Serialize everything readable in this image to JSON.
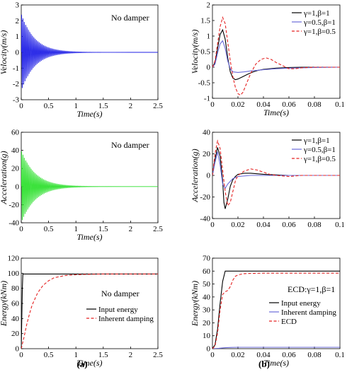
{
  "panel_labels": [
    "(a)",
    "(b)"
  ],
  "chart_data": [
    {
      "id": "a1",
      "type": "line",
      "xlabel": "Time(s)",
      "ylabel": "Velocity(m/s)",
      "xlim": [
        0,
        2.5
      ],
      "ylim": [
        -3,
        3
      ],
      "xticks": [
        0,
        0.5,
        1,
        1.5,
        2,
        2.5
      ],
      "yticks": [
        -3,
        -2,
        -1,
        0,
        1,
        2,
        3
      ],
      "annotation": "No damper",
      "series": [
        {
          "color": "#1f1fe6",
          "style": "solid",
          "kind": "damped_oscillation",
          "amplitude": 2.45,
          "decay_rate": 4.2,
          "frequency_hz": 40,
          "t_end": 2.5
        }
      ]
    },
    {
      "id": "b1",
      "type": "line",
      "xlabel": "Time(s)",
      "ylabel": "Velocity(m/s)",
      "xlim": [
        0,
        0.1
      ],
      "ylim": [
        -1,
        2
      ],
      "xticks": [
        0,
        0.02,
        0.04,
        0.06,
        0.08,
        0.1
      ],
      "yticks": [
        -1,
        -0.5,
        0,
        0.5,
        1,
        1.5,
        2
      ],
      "legend_position": "top-right",
      "series": [
        {
          "name": "γ=1,β=1",
          "color": "#000000",
          "style": "solid",
          "x": [
            0,
            0.002,
            0.004,
            0.006,
            0.008,
            0.01,
            0.012,
            0.014,
            0.016,
            0.018,
            0.02,
            0.024,
            0.028,
            0.032,
            0.036,
            0.04,
            0.05,
            0.06,
            0.07,
            0.08,
            0.1
          ],
          "y": [
            0,
            0.15,
            0.6,
            1.05,
            1.2,
            0.9,
            0.3,
            -0.15,
            -0.35,
            -0.4,
            -0.38,
            -0.3,
            -0.22,
            -0.15,
            -0.1,
            -0.07,
            -0.03,
            -0.01,
            0,
            0,
            0
          ]
        },
        {
          "name": "γ=0.5,β=1",
          "color": "#6b6bd9",
          "style": "solid",
          "x": [
            0,
            0.002,
            0.004,
            0.006,
            0.008,
            0.01,
            0.012,
            0.014,
            0.016,
            0.02,
            0.025,
            0.03,
            0.04,
            0.05,
            0.06,
            0.08,
            0.1
          ],
          "y": [
            0,
            0.1,
            0.45,
            0.75,
            0.85,
            0.6,
            0.2,
            -0.05,
            -0.15,
            -0.17,
            -0.15,
            -0.12,
            -0.08,
            -0.05,
            -0.03,
            -0.01,
            0
          ]
        },
        {
          "name": "γ=1,β=0.5",
          "color": "#e52222",
          "style": "dashed",
          "x": [
            0,
            0.002,
            0.004,
            0.006,
            0.008,
            0.01,
            0.012,
            0.014,
            0.016,
            0.018,
            0.02,
            0.022,
            0.024,
            0.026,
            0.03,
            0.034,
            0.038,
            0.042,
            0.046,
            0.05,
            0.055,
            0.06,
            0.065,
            0.07,
            0.08,
            0.09,
            0.1
          ],
          "y": [
            0,
            0.2,
            0.75,
            1.3,
            1.6,
            1.4,
            0.8,
            0.2,
            -0.3,
            -0.65,
            -0.85,
            -0.9,
            -0.8,
            -0.6,
            -0.2,
            0.1,
            0.25,
            0.3,
            0.25,
            0.15,
            0.05,
            -0.05,
            -0.05,
            -0.02,
            0,
            0,
            0
          ]
        }
      ]
    },
    {
      "id": "a2",
      "type": "line",
      "xlabel": "Time(s)",
      "ylabel": "Acceleration(g)",
      "xlim": [
        0,
        2.5
      ],
      "ylim": [
        -40,
        60
      ],
      "xticks": [
        0,
        0.5,
        1,
        1.5,
        2,
        2.5
      ],
      "yticks": [
        -40,
        -20,
        0,
        20,
        40,
        60
      ],
      "annotation": "No damper",
      "series": [
        {
          "color": "#2ee02e",
          "style": "solid",
          "kind": "damped_oscillation",
          "amplitude": 40,
          "decay_rate": 4.0,
          "frequency_hz": 40,
          "t_end": 2.5
        }
      ]
    },
    {
      "id": "b2",
      "type": "line",
      "xlabel": "",
      "ylabel": "Acceleration(g)",
      "xlim": [
        0,
        0.1
      ],
      "ylim": [
        -40,
        40
      ],
      "xticks": [
        0,
        0.02,
        0.04,
        0.06,
        0.08,
        0.1
      ],
      "yticks": [
        -40,
        -20,
        0,
        20,
        40
      ],
      "legend_position": "top-right",
      "series": [
        {
          "name": "γ=1,β=1",
          "color": "#000000",
          "style": "solid",
          "x": [
            0,
            0.002,
            0.004,
            0.006,
            0.008,
            0.009,
            0.01,
            0.012,
            0.014,
            0.016,
            0.018,
            0.02,
            0.025,
            0.03,
            0.04,
            0.05,
            0.06,
            0.08,
            0.1
          ],
          "y": [
            0,
            15,
            26,
            18,
            -5,
            -25,
            -31,
            -22,
            -10,
            -4,
            -1,
            1,
            2,
            2,
            1,
            0.5,
            0,
            0,
            0
          ]
        },
        {
          "name": "γ=0.5,β=1",
          "color": "#6b6bd9",
          "style": "solid",
          "x": [
            0,
            0.002,
            0.004,
            0.006,
            0.008,
            0.01,
            0.012,
            0.016,
            0.02,
            0.03,
            0.04,
            0.06,
            0.08,
            0.1
          ],
          "y": [
            0,
            12,
            22,
            10,
            -8,
            -12,
            -8,
            -3,
            -1,
            0,
            0,
            0,
            0,
            0
          ]
        },
        {
          "name": "γ=1,β=0.5",
          "color": "#e52222",
          "style": "dashed",
          "x": [
            0,
            0.002,
            0.004,
            0.006,
            0.008,
            0.01,
            0.012,
            0.014,
            0.016,
            0.018,
            0.02,
            0.025,
            0.03,
            0.035,
            0.04,
            0.045,
            0.05,
            0.06,
            0.07,
            0.08,
            0.1
          ],
          "y": [
            0,
            20,
            32,
            25,
            5,
            -15,
            -28,
            -25,
            -15,
            -5,
            0,
            4,
            6,
            5,
            3,
            1,
            0,
            -1,
            0,
            0,
            0
          ]
        }
      ]
    },
    {
      "id": "a3",
      "type": "line",
      "xlabel": "Time(s)",
      "ylabel": "Energy(kNm)",
      "xlim": [
        0,
        2.5
      ],
      "ylim": [
        0,
        120
      ],
      "xticks": [
        0,
        0.5,
        1,
        1.5,
        2,
        2.5
      ],
      "yticks": [
        0,
        20,
        40,
        60,
        80,
        100,
        120
      ],
      "annotation": "No damper",
      "legend_position": "center-right",
      "series": [
        {
          "name": "Input energy",
          "color": "#000000",
          "style": "solid",
          "x": [
            0,
            0.01,
            0.02,
            0.03,
            0.05,
            2.5
          ],
          "y": [
            0,
            40,
            80,
            99,
            99,
            99
          ]
        },
        {
          "name": "Inherent damping",
          "color": "#e52222",
          "style": "dashed",
          "x": [
            0,
            0.05,
            0.1,
            0.15,
            0.2,
            0.3,
            0.4,
            0.5,
            0.6,
            0.8,
            1.0,
            1.2,
            1.5,
            2.0,
            2.5
          ],
          "y": [
            0,
            15,
            32,
            46,
            58,
            74,
            84,
            90,
            94,
            97,
            98,
            98.5,
            99,
            99,
            99
          ]
        }
      ]
    },
    {
      "id": "b3",
      "type": "line",
      "xlabel": "Time(s)",
      "ylabel": "Energy(kNm)",
      "xlim": [
        0,
        0.1
      ],
      "ylim": [
        0,
        70
      ],
      "xticks": [
        0,
        0.02,
        0.04,
        0.06,
        0.08,
        0.1
      ],
      "yticks": [
        0,
        10,
        20,
        30,
        40,
        50,
        60,
        70
      ],
      "annotation": "ECD:γ=1,β=1",
      "legend_position": "center-right",
      "series": [
        {
          "name": "Input energy",
          "color": "#000000",
          "style": "solid",
          "x": [
            0,
            0.002,
            0.004,
            0.006,
            0.008,
            0.01,
            0.1
          ],
          "y": [
            0,
            3,
            15,
            35,
            52,
            60,
            60
          ]
        },
        {
          "name": "Inherent damping",
          "color": "#6b6bd9",
          "style": "solid",
          "x": [
            0,
            0.005,
            0.01,
            0.015,
            0.02,
            0.1
          ],
          "y": [
            0,
            0.3,
            0.8,
            1.0,
            1.1,
            1.1
          ]
        },
        {
          "name": "ECD",
          "color": "#e52222",
          "style": "dashed",
          "x": [
            0,
            0.002,
            0.004,
            0.006,
            0.008,
            0.01,
            0.012,
            0.014,
            0.016,
            0.018,
            0.02,
            0.022,
            0.025,
            0.03,
            0.035,
            0.04,
            0.05,
            0.1
          ],
          "y": [
            0,
            2,
            12,
            30,
            42,
            44,
            45,
            48,
            53,
            56,
            57,
            57.5,
            58,
            58.2,
            58.3,
            58.4,
            58.4,
            58.4
          ]
        }
      ]
    }
  ]
}
